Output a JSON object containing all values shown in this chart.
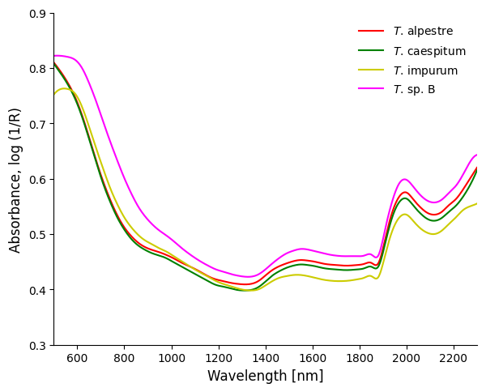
{
  "title": "",
  "xlabel": "Wavelength [nm]",
  "ylabel": "Absorbance, log (1/R)",
  "xlim": [
    500,
    2300
  ],
  "ylim": [
    0.3,
    0.9
  ],
  "yticks": [
    0.3,
    0.4,
    0.5,
    0.6,
    0.7,
    0.8,
    0.9
  ],
  "xticks": [
    600,
    800,
    1000,
    1200,
    1400,
    1600,
    1800,
    2000,
    2200
  ],
  "colors": {
    "alpestre": "#FF0000",
    "caespitum": "#008000",
    "impurum": "#CCCC00",
    "spB": "#FF00FF"
  },
  "line_width": 1.5,
  "background_color": "#ffffff",
  "species": {
    "alpestre": {
      "wavelengths": [
        500,
        530,
        560,
        590,
        620,
        650,
        680,
        710,
        740,
        770,
        800,
        830,
        860,
        890,
        920,
        950,
        980,
        1010,
        1040,
        1070,
        1100,
        1130,
        1160,
        1190,
        1220,
        1250,
        1280,
        1310,
        1340,
        1370,
        1400,
        1430,
        1460,
        1490,
        1520,
        1550,
        1580,
        1610,
        1640,
        1670,
        1700,
        1730,
        1760,
        1790,
        1820,
        1850,
        1880,
        1910,
        1940,
        1970,
        2000,
        2030,
        2060,
        2090,
        2120,
        2150,
        2180,
        2210,
        2240,
        2270,
        2300
      ],
      "absorbance": [
        0.81,
        0.793,
        0.773,
        0.748,
        0.715,
        0.675,
        0.633,
        0.595,
        0.562,
        0.534,
        0.512,
        0.496,
        0.484,
        0.476,
        0.471,
        0.467,
        0.462,
        0.456,
        0.449,
        0.443,
        0.437,
        0.43,
        0.423,
        0.418,
        0.415,
        0.412,
        0.41,
        0.409,
        0.41,
        0.415,
        0.425,
        0.435,
        0.442,
        0.447,
        0.451,
        0.453,
        0.452,
        0.45,
        0.447,
        0.445,
        0.444,
        0.443,
        0.443,
        0.444,
        0.446,
        0.448,
        0.447,
        0.492,
        0.54,
        0.568,
        0.575,
        0.562,
        0.548,
        0.538,
        0.535,
        0.54,
        0.552,
        0.563,
        0.58,
        0.6,
        0.62
      ]
    },
    "caespitum": {
      "wavelengths": [
        500,
        530,
        560,
        590,
        620,
        650,
        680,
        710,
        740,
        770,
        800,
        830,
        860,
        890,
        920,
        950,
        980,
        1010,
        1040,
        1070,
        1100,
        1130,
        1160,
        1190,
        1220,
        1250,
        1280,
        1310,
        1340,
        1370,
        1400,
        1430,
        1460,
        1490,
        1520,
        1550,
        1580,
        1610,
        1640,
        1670,
        1700,
        1730,
        1760,
        1790,
        1820,
        1850,
        1880,
        1910,
        1940,
        1970,
        2000,
        2030,
        2060,
        2090,
        2120,
        2150,
        2180,
        2210,
        2240,
        2270,
        2300
      ],
      "absorbance": [
        0.808,
        0.79,
        0.77,
        0.745,
        0.712,
        0.672,
        0.63,
        0.591,
        0.558,
        0.53,
        0.508,
        0.491,
        0.479,
        0.471,
        0.465,
        0.461,
        0.456,
        0.449,
        0.442,
        0.435,
        0.428,
        0.421,
        0.414,
        0.408,
        0.405,
        0.402,
        0.399,
        0.398,
        0.399,
        0.404,
        0.414,
        0.425,
        0.433,
        0.439,
        0.443,
        0.445,
        0.444,
        0.442,
        0.439,
        0.437,
        0.436,
        0.435,
        0.435,
        0.436,
        0.438,
        0.441,
        0.441,
        0.484,
        0.531,
        0.558,
        0.564,
        0.551,
        0.537,
        0.527,
        0.524,
        0.529,
        0.54,
        0.551,
        0.567,
        0.588,
        0.615
      ]
    },
    "impurum": {
      "wavelengths": [
        500,
        530,
        560,
        590,
        620,
        650,
        680,
        710,
        740,
        770,
        800,
        830,
        860,
        890,
        920,
        950,
        980,
        1010,
        1040,
        1070,
        1100,
        1130,
        1160,
        1190,
        1220,
        1250,
        1280,
        1310,
        1340,
        1370,
        1400,
        1430,
        1460,
        1490,
        1520,
        1550,
        1580,
        1610,
        1640,
        1670,
        1700,
        1730,
        1760,
        1790,
        1820,
        1850,
        1880,
        1910,
        1940,
        1970,
        2000,
        2030,
        2060,
        2090,
        2120,
        2150,
        2180,
        2210,
        2240,
        2270,
        2300
      ],
      "absorbance": [
        0.752,
        0.762,
        0.762,
        0.754,
        0.73,
        0.694,
        0.655,
        0.618,
        0.583,
        0.554,
        0.53,
        0.512,
        0.498,
        0.488,
        0.481,
        0.474,
        0.468,
        0.46,
        0.452,
        0.444,
        0.436,
        0.429,
        0.422,
        0.415,
        0.41,
        0.406,
        0.402,
        0.399,
        0.398,
        0.4,
        0.407,
        0.415,
        0.421,
        0.424,
        0.426,
        0.426,
        0.424,
        0.421,
        0.418,
        0.416,
        0.415,
        0.415,
        0.416,
        0.418,
        0.421,
        0.424,
        0.422,
        0.463,
        0.506,
        0.53,
        0.535,
        0.523,
        0.51,
        0.502,
        0.5,
        0.506,
        0.518,
        0.53,
        0.543,
        0.55,
        0.555
      ]
    },
    "spB": {
      "wavelengths": [
        500,
        530,
        560,
        590,
        620,
        650,
        680,
        710,
        740,
        770,
        800,
        830,
        860,
        890,
        920,
        950,
        980,
        1010,
        1040,
        1070,
        1100,
        1130,
        1160,
        1190,
        1220,
        1250,
        1280,
        1310,
        1340,
        1370,
        1400,
        1430,
        1460,
        1490,
        1520,
        1550,
        1580,
        1610,
        1640,
        1670,
        1700,
        1730,
        1760,
        1790,
        1820,
        1850,
        1880,
        1910,
        1940,
        1970,
        2000,
        2030,
        2060,
        2090,
        2120,
        2150,
        2180,
        2210,
        2240,
        2270,
        2300
      ],
      "absorbance": [
        0.822,
        0.822,
        0.82,
        0.815,
        0.8,
        0.773,
        0.74,
        0.703,
        0.667,
        0.633,
        0.601,
        0.573,
        0.549,
        0.531,
        0.517,
        0.506,
        0.497,
        0.487,
        0.476,
        0.466,
        0.457,
        0.449,
        0.442,
        0.436,
        0.432,
        0.428,
        0.425,
        0.423,
        0.423,
        0.427,
        0.436,
        0.447,
        0.457,
        0.465,
        0.47,
        0.473,
        0.472,
        0.469,
        0.466,
        0.463,
        0.461,
        0.46,
        0.46,
        0.46,
        0.461,
        0.463,
        0.461,
        0.51,
        0.56,
        0.592,
        0.598,
        0.585,
        0.57,
        0.56,
        0.557,
        0.562,
        0.574,
        0.587,
        0.607,
        0.63,
        0.643
      ]
    }
  }
}
